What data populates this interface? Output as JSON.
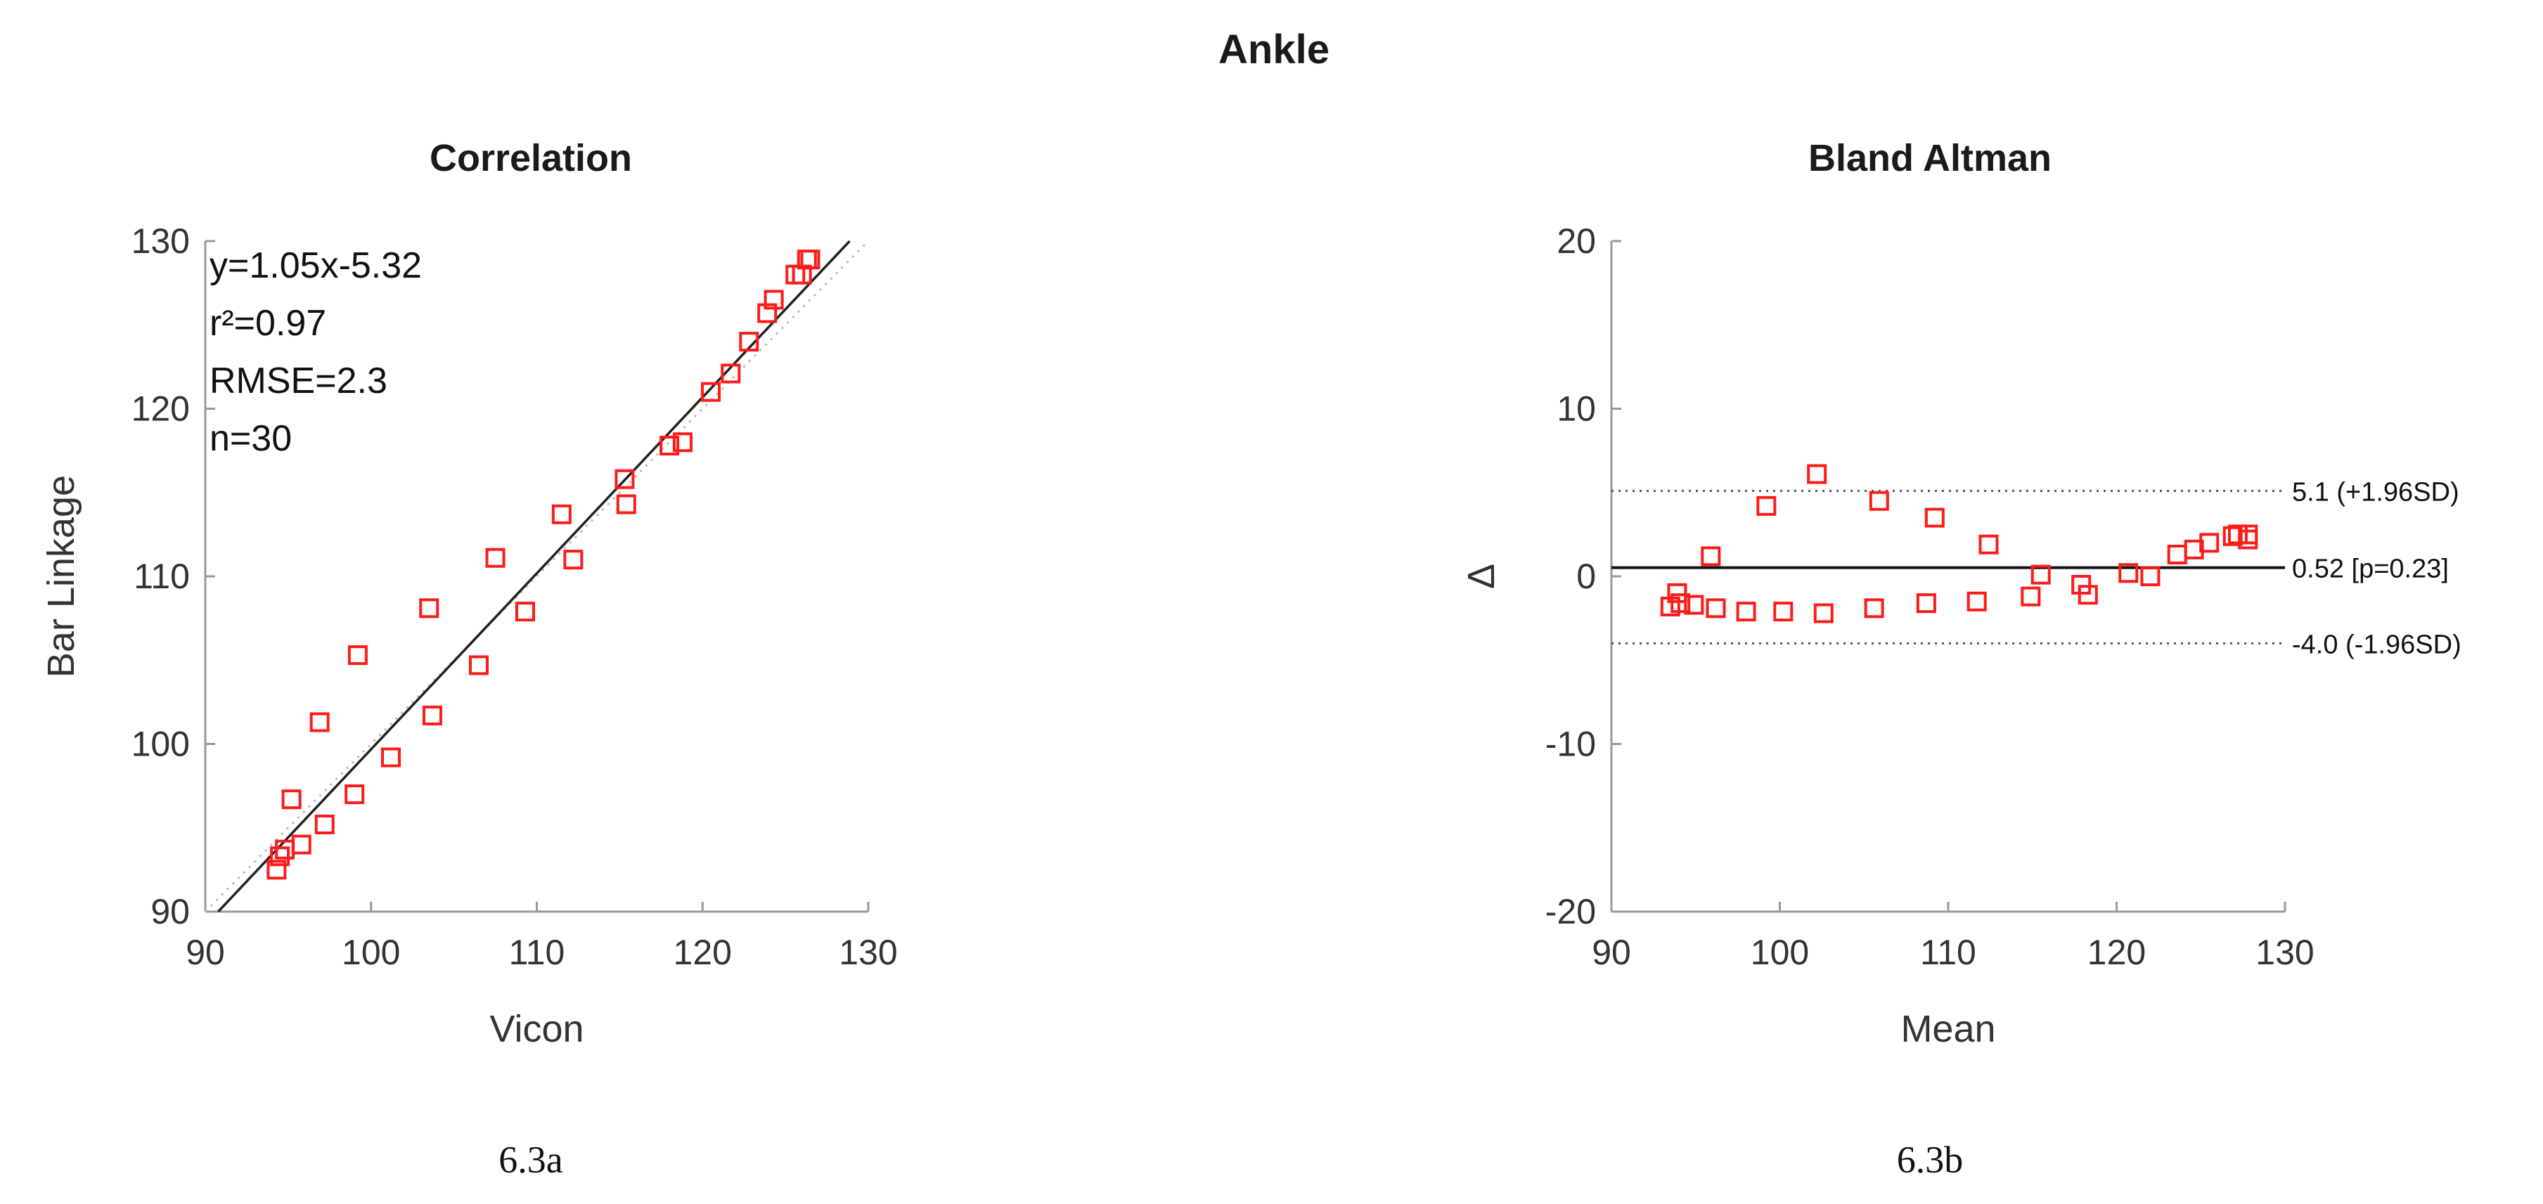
{
  "figure": {
    "title": "Ankle",
    "captions": [
      "6.3a",
      "6.3b"
    ]
  },
  "chart_data": [
    {
      "type": "scatter",
      "title": "Correlation",
      "xlabel": "Vicon",
      "ylabel": "Bar Linkage",
      "xlim": [
        90,
        130
      ],
      "ylim": [
        90,
        130
      ],
      "xticks": [
        90,
        100,
        110,
        120,
        130
      ],
      "yticks": [
        90,
        100,
        110,
        120,
        130
      ],
      "grid": false,
      "marker_color": "#ff1a1a",
      "fit_line": {
        "slope": 1.05,
        "intercept": -5.32
      },
      "annotations": [
        "y=1.05x-5.32",
        "r²=0.97",
        "RMSE=2.3",
        "n=30"
      ],
      "x": [
        94.3,
        94.5,
        94.8,
        95.2,
        95.8,
        96.9,
        97.2,
        99.0,
        99.2,
        101.2,
        103.5,
        103.7,
        106.5,
        107.5,
        109.3,
        111.5,
        112.2,
        115.3,
        115.4,
        118.0,
        118.8,
        120.5,
        121.7,
        122.8,
        123.9,
        124.3,
        125.6,
        126.0,
        126.3,
        126.5
      ],
      "y": [
        92.5,
        93.3,
        93.7,
        96.7,
        94.0,
        101.3,
        95.2,
        97.0,
        105.3,
        99.2,
        108.1,
        101.7,
        104.7,
        111.1,
        107.9,
        113.7,
        111.0,
        115.8,
        114.3,
        117.8,
        118.0,
        121.0,
        122.1,
        124.0,
        125.7,
        126.5,
        128.0,
        128.0,
        128.9,
        128.9
      ]
    },
    {
      "type": "scatter",
      "title": "Bland Altman",
      "xlabel": "Mean",
      "ylabel": "Δ",
      "xlim": [
        90,
        130
      ],
      "ylim": [
        -20,
        20
      ],
      "xticks": [
        90,
        100,
        110,
        120,
        130
      ],
      "yticks": [
        -20,
        -10,
        0,
        10,
        20
      ],
      "grid": false,
      "marker_color": "#ff1a1a",
      "reference_lines": [
        {
          "value": 5.1,
          "label": "5.1 (+1.96SD)",
          "style": "dotted"
        },
        {
          "value": 0.52,
          "label": "0.52 [p=0.23]",
          "style": "solid"
        },
        {
          "value": -4.0,
          "label": "-4.0 (-1.96SD)",
          "style": "dotted"
        }
      ],
      "x": [
        93.5,
        93.9,
        94.1,
        94.9,
        95.9,
        96.2,
        98.0,
        99.2,
        100.2,
        102.2,
        102.6,
        105.6,
        105.9,
        108.7,
        109.2,
        111.7,
        112.4,
        114.9,
        115.5,
        117.9,
        118.3,
        120.7,
        122.0,
        123.6,
        124.6,
        125.5,
        126.9,
        127.2,
        127.8,
        127.8
      ],
      "y": [
        -1.8,
        -1.0,
        -1.6,
        -1.7,
        1.2,
        -1.9,
        -2.1,
        4.2,
        -2.1,
        6.1,
        -2.2,
        -1.9,
        4.5,
        -1.6,
        3.5,
        -1.5,
        1.9,
        -1.2,
        0.1,
        -0.5,
        -1.1,
        0.2,
        0.0,
        1.3,
        1.6,
        2.0,
        2.4,
        2.5,
        2.5,
        2.2
      ]
    }
  ]
}
